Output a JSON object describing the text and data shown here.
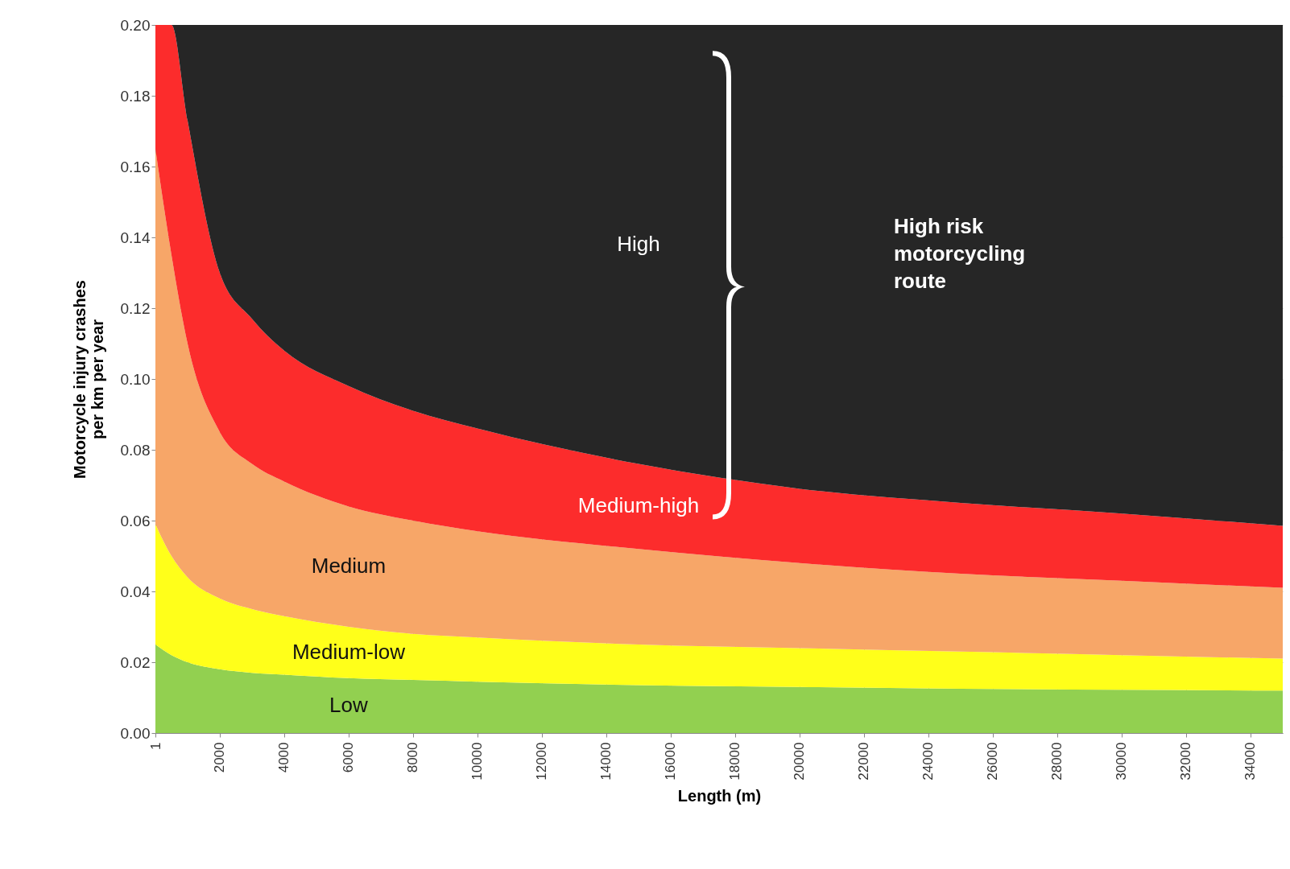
{
  "chart_data": {
    "type": "area",
    "stacked": true,
    "xlabel": "Length (m)",
    "ylabel": "Motorcycle injury crashes\nper km per year",
    "x": [
      1,
      500,
      1000,
      2000,
      3000,
      4000,
      6000,
      8000,
      10000,
      15000,
      20000,
      25000,
      30000,
      35000
    ],
    "series": [
      {
        "name": "Low",
        "color": "#92d050",
        "values": [
          0.025,
          0.022,
          0.02,
          0.018,
          0.017,
          0.0165,
          0.0155,
          0.015,
          0.0145,
          0.0135,
          0.013,
          0.0125,
          0.0122,
          0.012
        ]
      },
      {
        "name": "Medium-low",
        "color": "#ffff1a",
        "values": [
          0.034,
          0.028,
          0.024,
          0.02,
          0.018,
          0.0165,
          0.0145,
          0.013,
          0.0125,
          0.0115,
          0.011,
          0.0105,
          0.0098,
          0.009
        ]
      },
      {
        "name": "Medium",
        "color": "#f7a668",
        "values": [
          0.106,
          0.085,
          0.066,
          0.047,
          0.041,
          0.038,
          0.034,
          0.032,
          0.03,
          0.027,
          0.024,
          0.022,
          0.021,
          0.02
        ]
      },
      {
        "name": "Medium-high",
        "color": "#fc2c2c",
        "values": [
          0.035,
          0.065,
          0.063,
          0.045,
          0.041,
          0.037,
          0.034,
          0.031,
          0.029,
          0.024,
          0.021,
          0.02,
          0.019,
          0.0175
        ]
      },
      {
        "name": "High",
        "color": "#262626",
        "values": [
          0,
          0,
          0.027,
          0.07,
          0.083,
          0.092,
          0.102,
          0.109,
          0.114,
          0.124,
          0.131,
          0.135,
          0.138,
          0.1415
        ]
      }
    ],
    "xlim": [
      1,
      35000
    ],
    "xticks": [
      1,
      2000,
      4000,
      6000,
      8000,
      10000,
      12000,
      14000,
      16000,
      18000,
      20000,
      22000,
      24000,
      26000,
      28000,
      30000,
      32000,
      34000
    ],
    "ylim": [
      0,
      0.2
    ],
    "yticks": [
      {
        "value": 0,
        "label": "0.00"
      },
      {
        "value": 0.02,
        "label": "0.02"
      },
      {
        "value": 0.04,
        "label": "0.04"
      },
      {
        "value": 0.06,
        "label": "0.06"
      },
      {
        "value": 0.08,
        "label": "0.08"
      },
      {
        "value": 0.1,
        "label": "0.10"
      },
      {
        "value": 0.12,
        "label": "0.12"
      },
      {
        "value": 0.14,
        "label": "0.14"
      },
      {
        "value": 0.16,
        "label": "0.16"
      },
      {
        "value": 0.18,
        "label": "0.18"
      },
      {
        "value": 0.2,
        "label": "0.20"
      }
    ],
    "grid": true,
    "annotations": [
      "High risk\nmotorcycling\nroute"
    ]
  }
}
